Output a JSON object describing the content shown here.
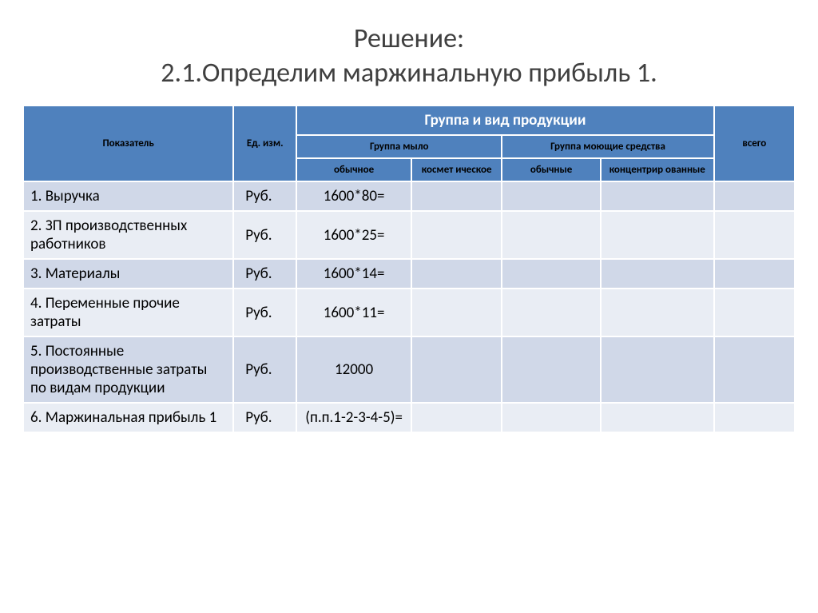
{
  "title_line1": "Решение:",
  "title_line2": "2.1.Определим маржинальную прибыль 1.",
  "header": {
    "indicator": "Показатель",
    "unit": "Ед. изм.",
    "group_top": "Группа и вид продукции",
    "group_soap": "Группа мыло",
    "group_detergent": "Группа моющие средства",
    "total": "всего",
    "sub_soap_reg": "обычное",
    "sub_soap_cos": "космет ическое",
    "sub_det_reg": "обычные",
    "sub_det_conc": "концентрир ованные"
  },
  "rows": [
    {
      "ind": "1. Выручка",
      "unit": "Руб.",
      "v1": "1600*80=",
      "v2": "",
      "v3": "",
      "v4": "",
      "tot": ""
    },
    {
      "ind": "2.  ЗП производственных работников",
      "unit": "Руб.",
      "v1": "1600*25=",
      "v2": "",
      "v3": "",
      "v4": "",
      "tot": ""
    },
    {
      "ind": "3. Материалы",
      "unit": "Руб.",
      "v1": "1600*14=",
      "v2": "",
      "v3": "",
      "v4": "",
      "tot": ""
    },
    {
      "ind": "4. Переменные прочие затраты",
      "unit": "Руб.",
      "v1": "1600*11=",
      "v2": "",
      "v3": "",
      "v4": "",
      "tot": ""
    },
    {
      "ind": "5. Постоянные производственные затраты по видам продукции",
      "unit": "Руб.",
      "v1": "12000",
      "v2": "",
      "v3": "",
      "v4": "",
      "tot": ""
    },
    {
      "ind": "6. Маржинальная прибыль 1",
      "unit": "Руб.",
      "v1": "(п.п.1-2-3-4-5)=",
      "v2": "",
      "v3": "",
      "v4": "",
      "tot": ""
    }
  ],
  "style": {
    "header_bg": "#4f81bd",
    "row_odd_bg": "#d0d8e8",
    "row_even_bg": "#e9edf4",
    "title_color": "#404040",
    "title_fontsize": 34,
    "body_fontsize": 19,
    "header_small_fontsize": 13
  }
}
